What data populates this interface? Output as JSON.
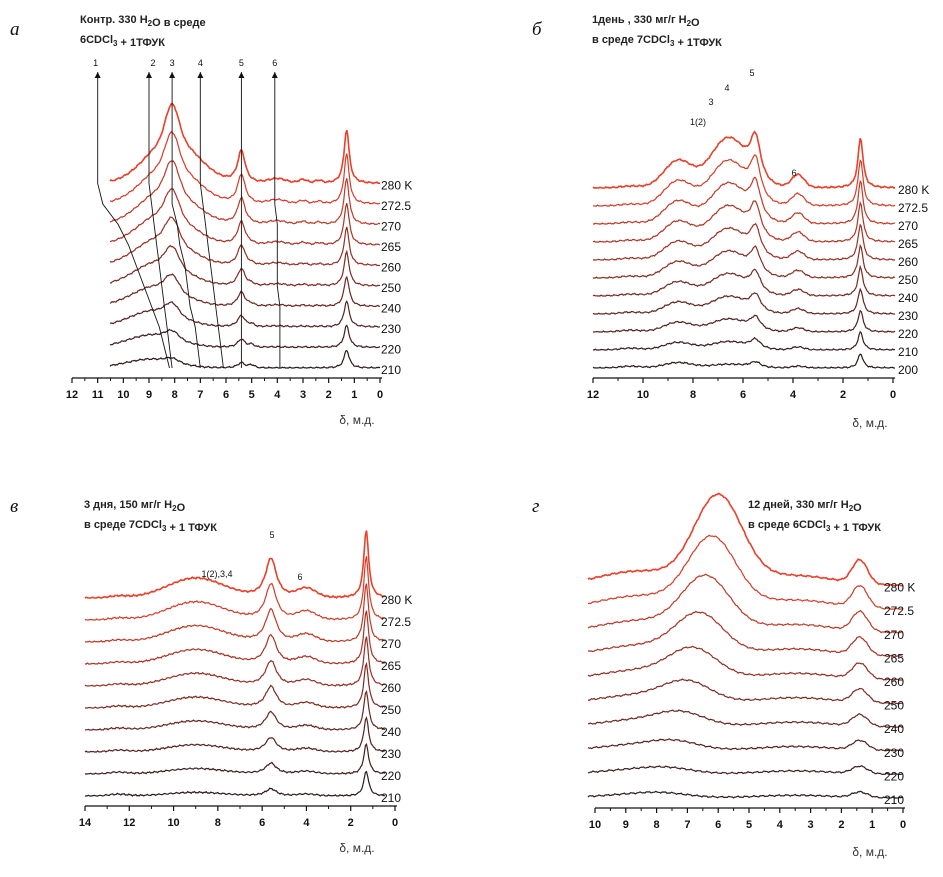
{
  "chart_data": [
    {
      "type": "line",
      "panel": "а",
      "title_lines": [
        {
          "parts": [
            {
              "t": "Контр. 330 H"
            },
            {
              "t": "2",
              "sub": true
            },
            {
              "t": "O в среде"
            }
          ]
        },
        {
          "parts": [
            {
              "t": "6CDCl"
            },
            {
              "t": "3",
              "sub": true
            },
            {
              "t": " + 1ТФУК"
            }
          ]
        }
      ],
      "xlabel": "δ, м.д.",
      "xlim": [
        12,
        0
      ],
      "xticks": [
        "12",
        "11",
        "10",
        "9",
        "8",
        "7",
        "6",
        "5",
        "4",
        "3",
        "2",
        "1",
        "0"
      ],
      "temperatures": [
        "280 K",
        "272.5",
        "270",
        "265",
        "260",
        "250",
        "240",
        "230",
        "220",
        "210"
      ],
      "peak_labels": [
        "1",
        "2",
        "3",
        "4",
        "5",
        "6"
      ],
      "peaks_ppm": [
        [
          11,
          9,
          8.1,
          7,
          5.4,
          4.1
        ],
        [
          10.8,
          8.9,
          8.1,
          6.9,
          5.4,
          4.1
        ],
        [
          10.2,
          8.8,
          7.9,
          6.8,
          5.4,
          4.0
        ],
        [
          9.8,
          8.7,
          7.8,
          6.7,
          5.4,
          4.0
        ],
        [
          9.5,
          8.6,
          7.6,
          6.6,
          5.4,
          4.0
        ],
        [
          9.2,
          8.5,
          7.5,
          6.5,
          5.4,
          4.0
        ],
        [
          8.9,
          8.4,
          7.4,
          6.4,
          5.4,
          3.9
        ],
        [
          8.6,
          8.3,
          7.2,
          6.3,
          5.4,
          3.9
        ],
        [
          8.4,
          8.2,
          7.1,
          6.2,
          5.4,
          3.9
        ],
        [
          8.2,
          8.1,
          7.0,
          6.1,
          5.4,
          3.9
        ]
      ]
    },
    {
      "type": "line",
      "panel": "б",
      "title_lines": [
        {
          "parts": [
            {
              "t": "1день , 330 мг/г H"
            },
            {
              "t": "2",
              "sub": true
            },
            {
              "t": "O"
            }
          ]
        },
        {
          "parts": [
            {
              "t": "в среде 7CDCl"
            },
            {
              "t": "3",
              "sub": true
            },
            {
              "t": " + 1ТФУК"
            }
          ]
        }
      ],
      "xlabel": "δ, м.д.",
      "xlim": [
        12,
        0
      ],
      "xticks": [
        "12",
        "10",
        "8",
        "6",
        "4",
        "2",
        "0"
      ],
      "temperatures": [
        "280 K",
        "272.5",
        "270",
        "265",
        "260",
        "250",
        "240",
        "230",
        "220",
        "210",
        "200"
      ],
      "peak_labels": [
        "1(2)",
        "3",
        "4",
        "5",
        "6"
      ]
    },
    {
      "type": "line",
      "panel": "в",
      "title_lines": [
        {
          "parts": [
            {
              "t": "3 дня, 150 мг/г H"
            },
            {
              "t": "2",
              "sub": true
            },
            {
              "t": "O"
            }
          ]
        },
        {
          "parts": [
            {
              "t": "в среде 7CDCl"
            },
            {
              "t": "3",
              "sub": true
            },
            {
              "t": " + 1 ТФУК"
            }
          ]
        }
      ],
      "xlabel": "δ, м.д.",
      "xlim": [
        14,
        0
      ],
      "xticks": [
        "14",
        "12",
        "10",
        "8",
        "6",
        "4",
        "2",
        "0"
      ],
      "temperatures": [
        "280 K",
        "272.5",
        "270",
        "265",
        "260",
        "250",
        "240",
        "230",
        "220",
        "210"
      ],
      "peak_labels": [
        "1(2),3,4",
        "5",
        "6"
      ]
    },
    {
      "type": "line",
      "panel": "г",
      "title_lines": [
        {
          "parts": [
            {
              "t": "12 дней, 330 мг/г H"
            },
            {
              "t": "2",
              "sub": true
            },
            {
              "t": "O"
            }
          ]
        },
        {
          "parts": [
            {
              "t": "в среде 6CDCl"
            },
            {
              "t": "3",
              "sub": true
            },
            {
              "t": " + 1 ТФУК"
            }
          ]
        }
      ],
      "xlabel": "δ, м.д.",
      "xlim": [
        10,
        0
      ],
      "xticks": [
        "10",
        "9",
        "8",
        "7",
        "6",
        "5",
        "4",
        "3",
        "2",
        "1",
        "0"
      ],
      "temperatures": [
        "280 K",
        "272.5",
        "270",
        "265",
        "260",
        "250",
        "240",
        "230",
        "220",
        "210"
      ],
      "peak_labels": []
    }
  ],
  "colors": {
    "hot": "#e8402a",
    "cold": "#2a1a1a",
    "axis": "#111111",
    "arrow": "#111111"
  }
}
